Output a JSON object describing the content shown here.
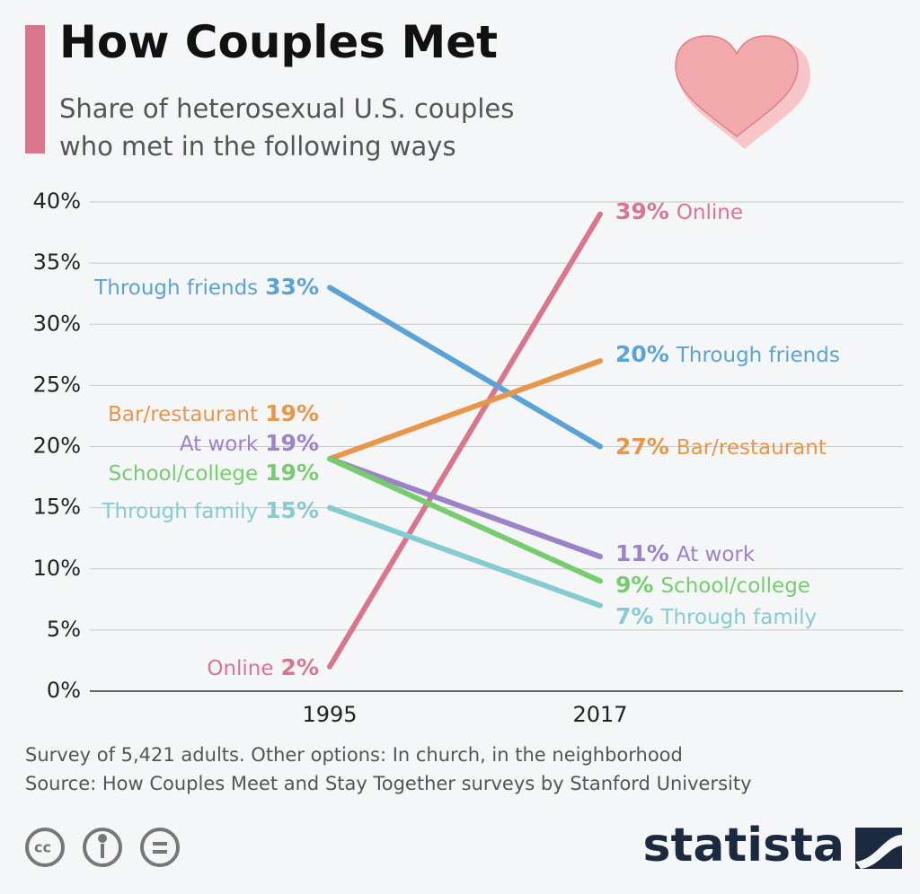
{
  "chart_data": {
    "type": "line",
    "title": "How Couples Met",
    "subtitle": "Share of heterosexual U.S. couples who met in the following ways",
    "categories": [
      "1995",
      "2017"
    ],
    "series": [
      {
        "name": "Online",
        "color": "#d9768d",
        "values": [
          2,
          39
        ],
        "value_labels": [
          "2%",
          "39%"
        ]
      },
      {
        "name": "Through friends",
        "color": "#5ba3d6",
        "values": [
          33,
          20
        ],
        "value_labels": [
          "33%",
          "20%"
        ]
      },
      {
        "name": "Bar/restaurant",
        "color": "#e8964a",
        "values": [
          19,
          27
        ],
        "value_labels": [
          "19%",
          "27%"
        ]
      },
      {
        "name": "At work",
        "color": "#9b82c9",
        "values": [
          19,
          11
        ],
        "value_labels": [
          "19%",
          "11%"
        ]
      },
      {
        "name": "School/college",
        "color": "#77cc6e",
        "values": [
          19,
          9
        ],
        "value_labels": [
          "19%",
          "9%"
        ]
      },
      {
        "name": "Through family",
        "color": "#86cbd1",
        "values": [
          15,
          7
        ],
        "value_labels": [
          "15%",
          "7%"
        ]
      }
    ],
    "ylim": [
      0,
      40
    ],
    "yticks": [
      {
        "value": 0,
        "label": "0%"
      },
      {
        "value": 5,
        "label": "5%"
      },
      {
        "value": 10,
        "label": "10%"
      },
      {
        "value": 15,
        "label": "15%"
      },
      {
        "value": 20,
        "label": "20%"
      },
      {
        "value": 25,
        "label": "25%"
      },
      {
        "value": 30,
        "label": "30%"
      },
      {
        "value": 35,
        "label": "35%"
      },
      {
        "value": 40,
        "label": "40%"
      }
    ],
    "grid": true,
    "notes": "Survey of 5,421 adults. Other options: In church, in the neighborhood",
    "source": "Source: How Couples Meet and Stay Together surveys by Stanford University",
    "brand": "statista"
  }
}
